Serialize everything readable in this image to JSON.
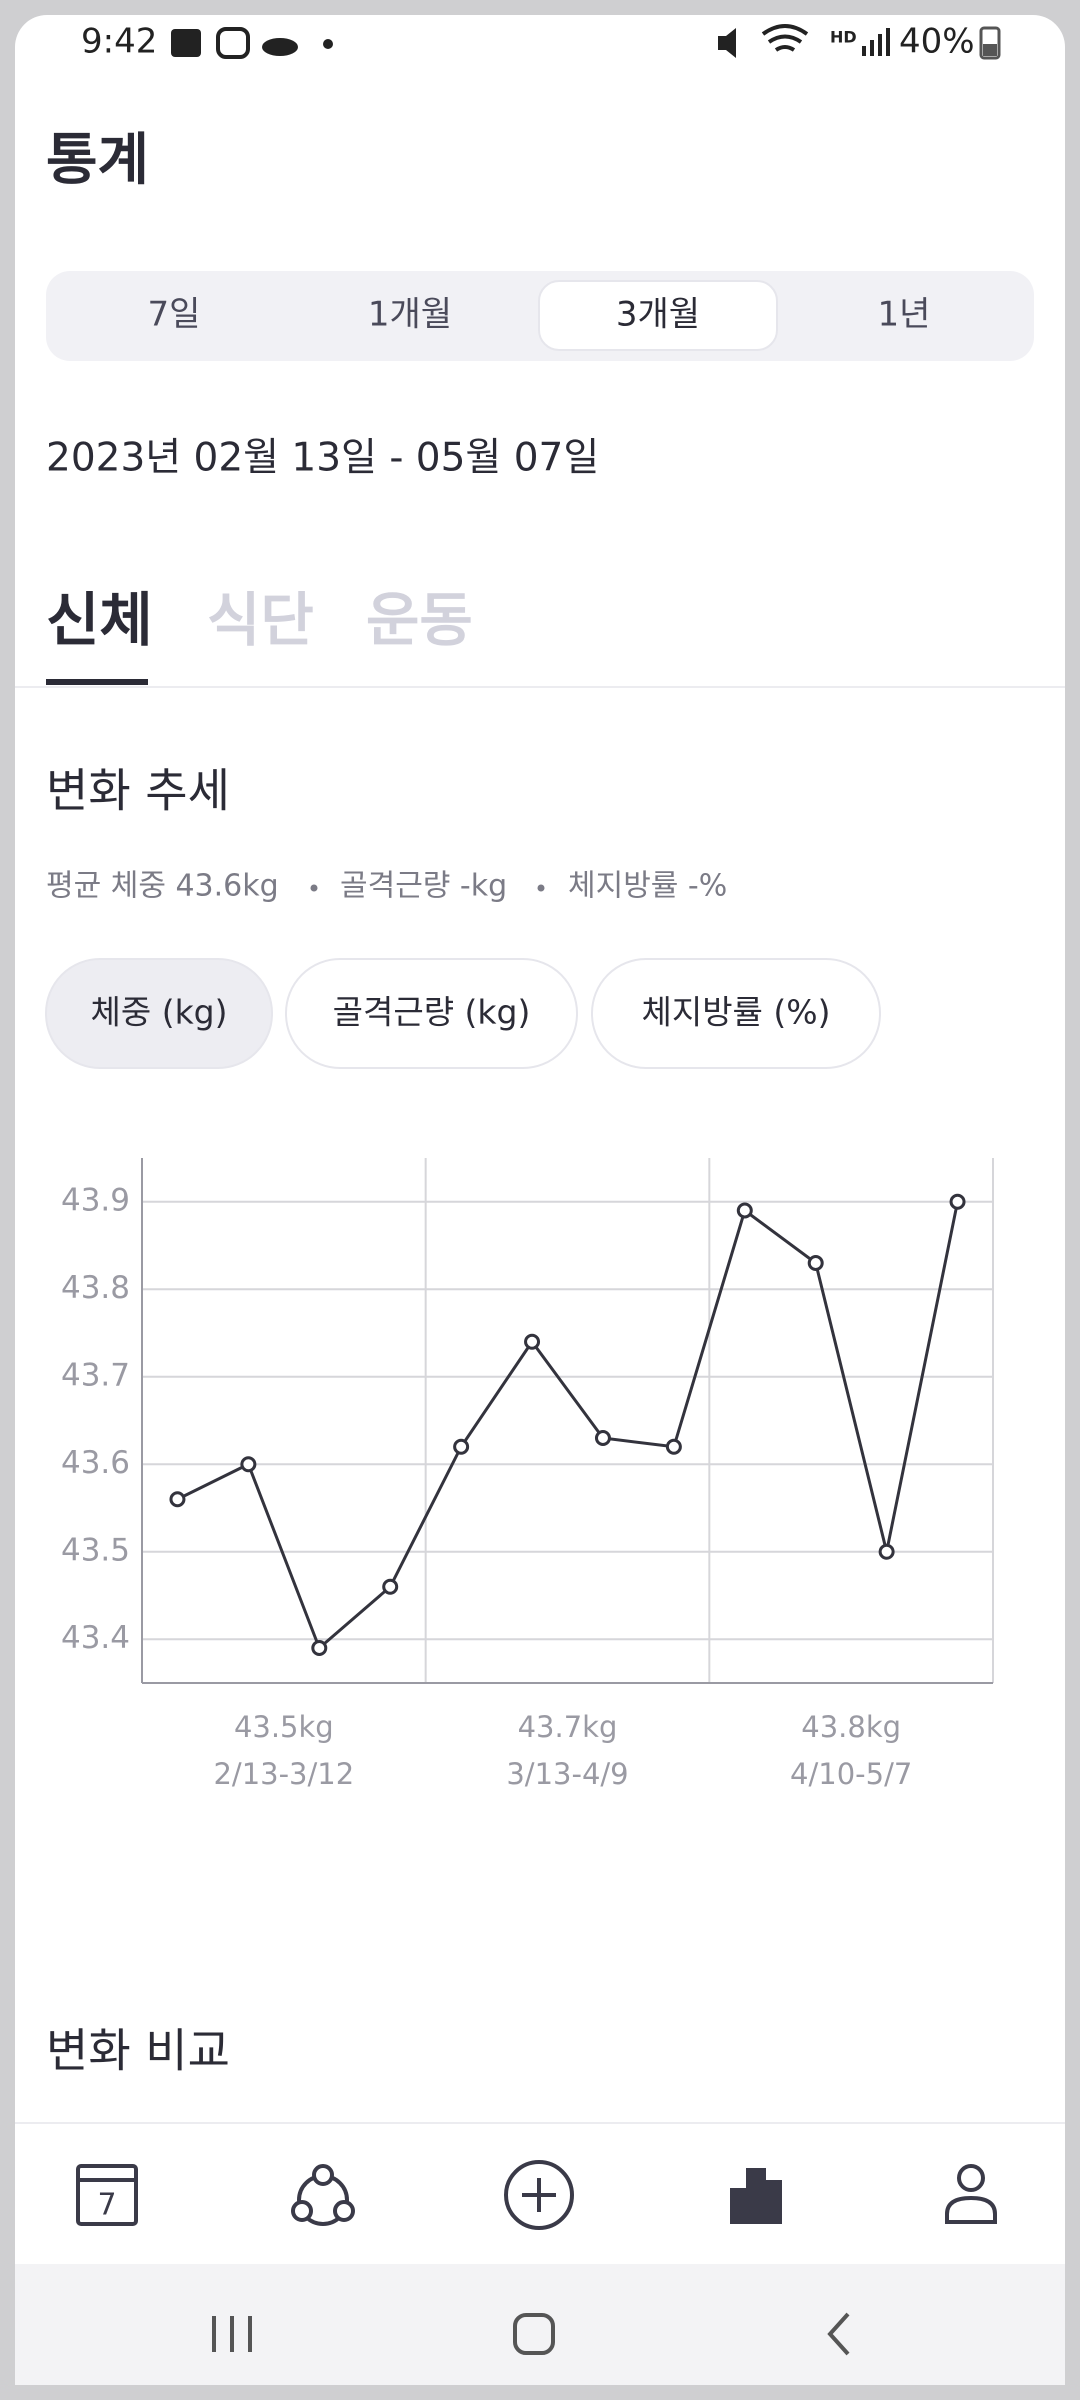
{
  "status_bar": {
    "time": "9:42",
    "battery": "40%"
  },
  "header": {
    "title": "통계"
  },
  "period_tabs": {
    "options": [
      "7일",
      "1개월",
      "3개월",
      "1년"
    ],
    "selected": 2
  },
  "date_range": "2023년 02월 13일 - 05월 07일",
  "category_tabs": {
    "options": [
      "신체",
      "식단",
      "운동"
    ],
    "selected": 0
  },
  "trend": {
    "title": "변화 추세",
    "summary": [
      "평균 체중 43.6kg",
      "골격근량 -kg",
      "체지방률 -%"
    ],
    "chips": [
      "체중 (kg)",
      "골격근량 (kg)",
      "체지방률 (%)"
    ],
    "selected_chip": 0
  },
  "chart_data": {
    "type": "line",
    "categories": [
      null,
      null,
      null,
      null,
      null,
      null,
      null,
      null,
      null,
      null,
      null,
      null
    ],
    "values": [
      43.56,
      43.6,
      43.39,
      43.46,
      43.62,
      43.74,
      43.63,
      43.62,
      43.89,
      43.83,
      43.5,
      43.9
    ],
    "color": "#33333d",
    "ylim": [
      43.35,
      43.95
    ],
    "yticks": [
      43.4,
      43.5,
      43.6,
      43.7,
      43.8,
      43.9
    ],
    "grid": true,
    "groups": [
      {
        "average": "43.5kg",
        "range": "2/13-3/12"
      },
      {
        "average": "43.7kg",
        "range": "3/13-4/9"
      },
      {
        "average": "43.8kg",
        "range": "4/10-5/7"
      }
    ]
  },
  "comparison": {
    "title": "변화 비교"
  },
  "bottom_nav": {
    "calendar_day": "7",
    "selected": 3
  }
}
